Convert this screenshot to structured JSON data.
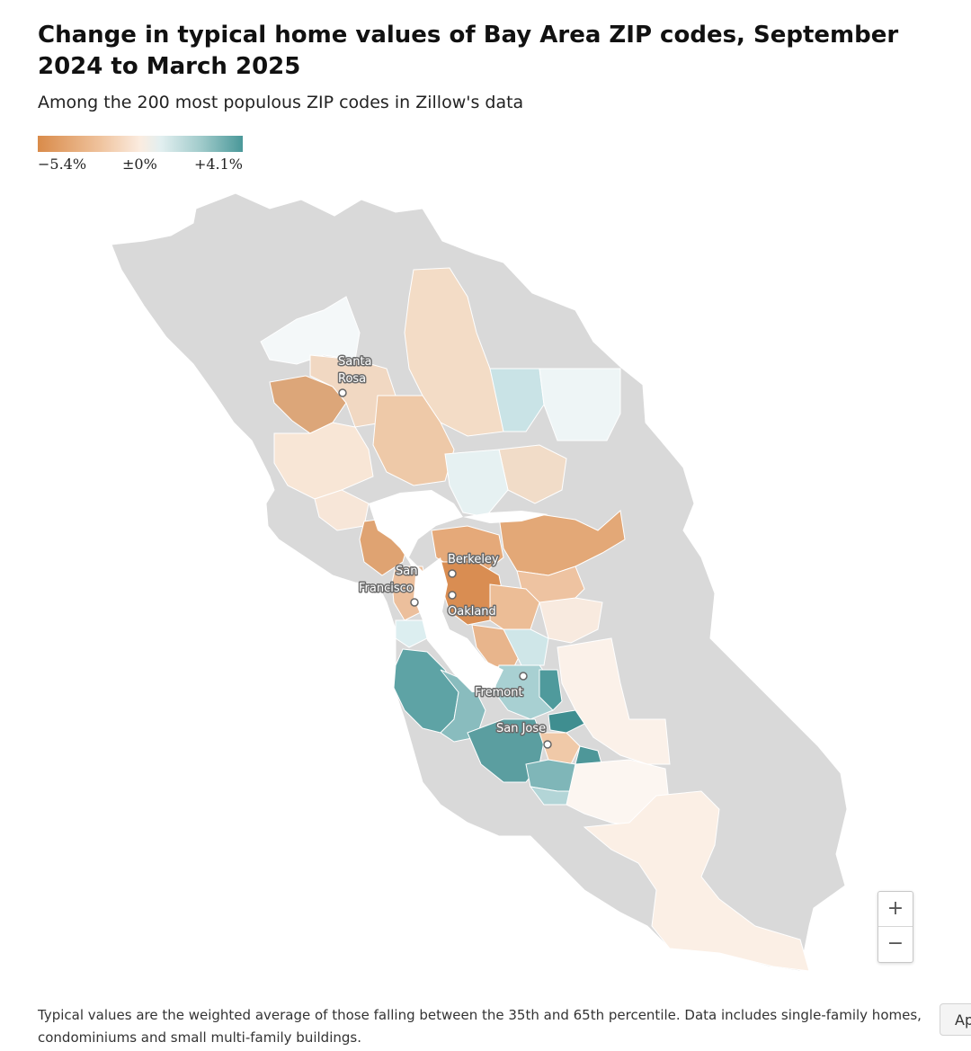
{
  "header": {
    "title": "Change in typical home values of Bay Area ZIP codes, September 2024 to March 2025",
    "subtitle": "Among the 200 most populous ZIP codes in Zillow's data"
  },
  "legend": {
    "min_label": "−5.4%",
    "mid_label": "±0%",
    "max_label": "+4.1%",
    "color_low": "#d98b4a",
    "color_mid": "#fbf4ee",
    "color_high": "#4a9899"
  },
  "map": {
    "no_data_color": "#d9d9d9",
    "cities": [
      {
        "name": "Santa Rosa",
        "lines": [
          "Santa",
          "Rosa"
        ]
      },
      {
        "name": "Berkeley",
        "lines": [
          "Berkeley"
        ]
      },
      {
        "name": "San Francisco",
        "lines": [
          "San",
          "Francisco"
        ]
      },
      {
        "name": "Oakland",
        "lines": [
          "Oakland"
        ]
      },
      {
        "name": "Fremont",
        "lines": [
          "Fremont"
        ]
      },
      {
        "name": "San Jose",
        "lines": [
          "San Jose"
        ]
      }
    ]
  },
  "zoom": {
    "in_symbol": "+",
    "out_symbol": "−"
  },
  "footnote": "Typical values are the weighted average of those falling between the 35th and 65th percentile. Data includes single-family homes, condominiums and small multi-family buildings.",
  "cutoff_button": {
    "label": "Ap"
  }
}
